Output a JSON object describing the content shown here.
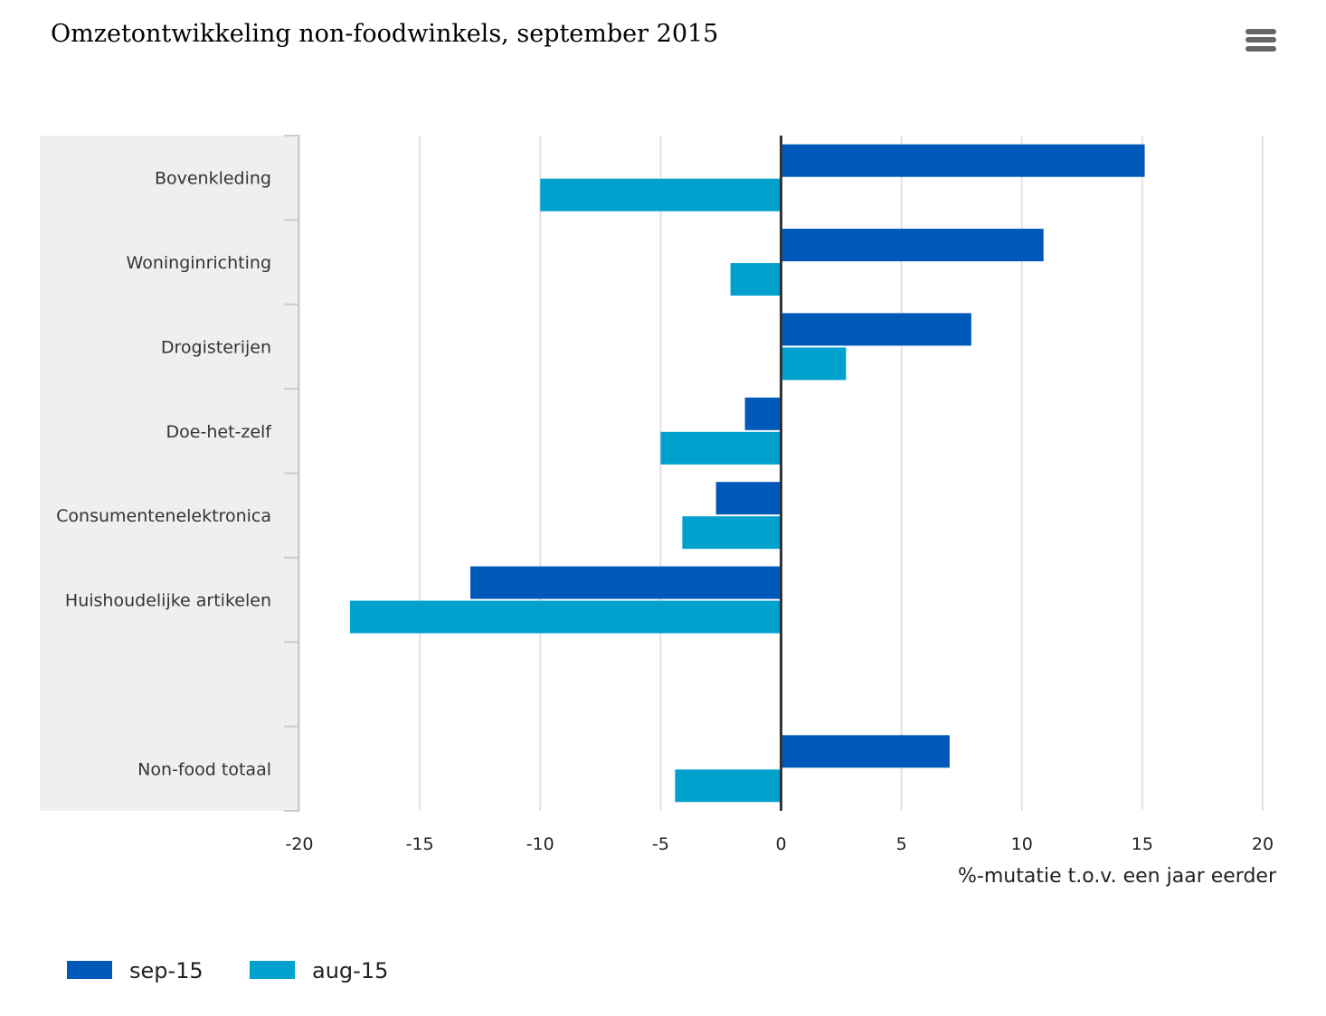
{
  "header": {
    "title": "Omzetontwikkeling non-foodwinkels, september 2015",
    "menu_icon": "hamburger-menu-icon"
  },
  "chart_data": {
    "type": "bar",
    "orientation": "horizontal",
    "title": "Omzetontwikkeling non-foodwinkels, september 2015",
    "categories": [
      "Bovenkleding",
      "Woninginrichting",
      "Drogisterijen",
      "Doe-het-zelf",
      "Consumentenelektronica",
      "Huishoudelijke artikelen",
      null,
      "Non-food totaal"
    ],
    "series": [
      {
        "name": "sep-15",
        "color": "#0058b8",
        "values": [
          15.1,
          10.9,
          7.9,
          -1.5,
          -2.7,
          -12.9,
          null,
          7.0
        ]
      },
      {
        "name": "aug-15",
        "color": "#00a1cd",
        "values": [
          -10.0,
          -2.1,
          2.7,
          -5.0,
          -4.1,
          -17.9,
          null,
          -4.4
        ]
      }
    ],
    "xlim": [
      -20,
      20
    ],
    "xticks": [
      -20,
      -15,
      -10,
      -5,
      0,
      5,
      10,
      15,
      20
    ],
    "xlabel": "%-mutatie t.o.v. een jaar eerder",
    "ylabel": "",
    "grid": true,
    "legend": "bottom-left"
  }
}
